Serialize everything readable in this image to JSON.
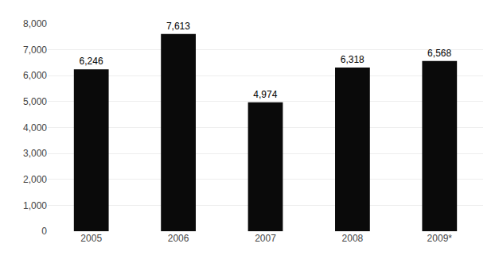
{
  "chart_data": {
    "type": "bar",
    "categories": [
      "2005",
      "2006",
      "2007",
      "2008",
      "2009*"
    ],
    "values": [
      6246,
      7613,
      4974,
      6318,
      6568
    ],
    "value_labels": [
      "6,246",
      "7,613",
      "4,974",
      "6,318",
      "6,568"
    ],
    "data_labels": true,
    "color": "#0a0a0a",
    "ylim": [
      0,
      8000
    ],
    "yticks": [
      0,
      {
        "value": 1000,
        "label": "1,000"
      },
      {
        "value": 2000,
        "label": "2,000"
      },
      {
        "value": 3000,
        "label": "3,000"
      },
      {
        "value": 4000,
        "label": "4,000"
      },
      {
        "value": 5000,
        "label": "5,000"
      },
      {
        "value": 6000,
        "label": "6,000"
      },
      {
        "value": 7000,
        "label": "7,000"
      },
      {
        "value": 8000,
        "label": "8,000"
      }
    ],
    "grid": true
  }
}
